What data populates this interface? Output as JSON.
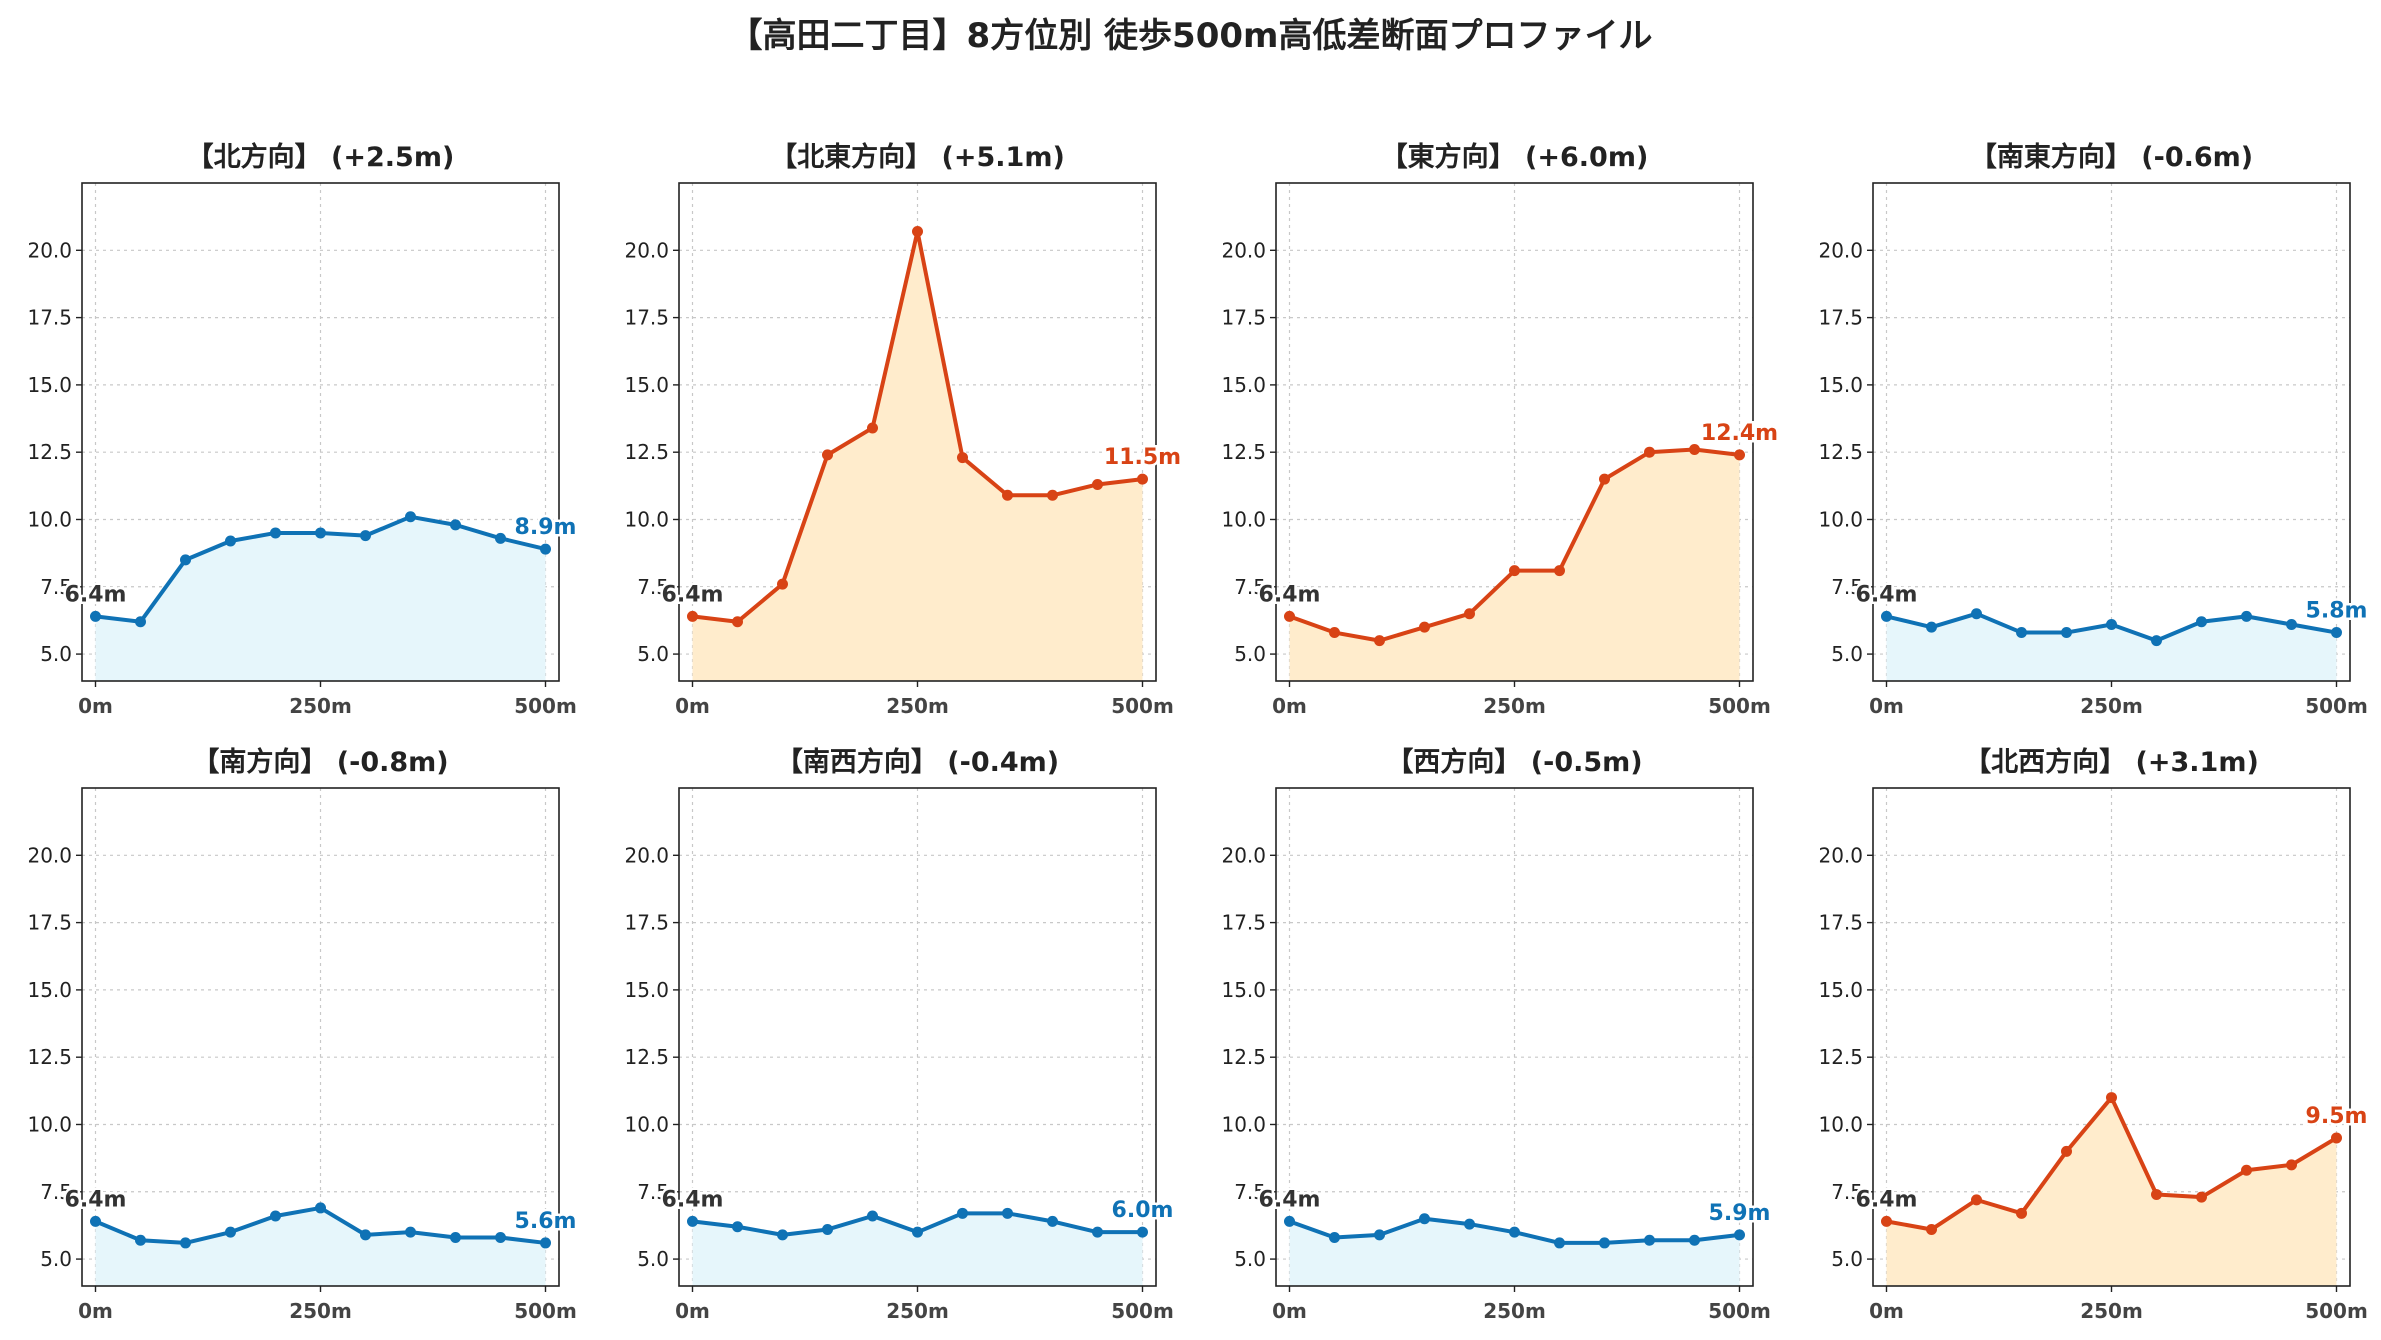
{
  "title": "【高田二丁目】8方位別 徒歩500m高低差断面プロファイル",
  "colors": {
    "up_line": "#d84315",
    "up_fill": "#ffeccc",
    "flat_line": "#0f72b5",
    "flat_fill": "#e6f6fb",
    "start_label": "#333333",
    "grid": "#c8c8c8"
  },
  "chart_data": [
    {
      "type": "area",
      "title": "【北方向】 (+2.5m)",
      "trend": "flat",
      "x": [
        0,
        50,
        100,
        150,
        200,
        250,
        300,
        350,
        400,
        450,
        500
      ],
      "values": [
        6.4,
        6.2,
        8.5,
        9.2,
        9.5,
        9.5,
        9.4,
        10.1,
        9.8,
        9.3,
        8.9
      ],
      "start_label": "6.4m",
      "end_label": "8.9m"
    },
    {
      "type": "area",
      "title": "【北東方向】 (+5.1m)",
      "trend": "up",
      "x": [
        0,
        50,
        100,
        150,
        200,
        250,
        300,
        350,
        400,
        450,
        500
      ],
      "values": [
        6.4,
        6.2,
        7.6,
        12.4,
        13.4,
        20.7,
        12.3,
        10.9,
        10.9,
        11.3,
        11.5
      ],
      "start_label": "6.4m",
      "end_label": "11.5m"
    },
    {
      "type": "area",
      "title": "【東方向】 (+6.0m)",
      "trend": "up",
      "x": [
        0,
        50,
        100,
        150,
        200,
        250,
        300,
        350,
        400,
        450,
        500
      ],
      "values": [
        6.4,
        5.8,
        5.5,
        6.0,
        6.5,
        8.1,
        8.1,
        11.5,
        12.5,
        12.6,
        12.4
      ],
      "start_label": "6.4m",
      "end_label": "12.4m"
    },
    {
      "type": "area",
      "title": "【南東方向】 (-0.6m)",
      "trend": "flat",
      "x": [
        0,
        50,
        100,
        150,
        200,
        250,
        300,
        350,
        400,
        450,
        500
      ],
      "values": [
        6.4,
        6.0,
        6.5,
        5.8,
        5.8,
        6.1,
        5.5,
        6.2,
        6.4,
        6.1,
        5.8
      ],
      "start_label": "6.4m",
      "end_label": "5.8m"
    },
    {
      "type": "area",
      "title": "【南方向】 (-0.8m)",
      "trend": "flat",
      "x": [
        0,
        50,
        100,
        150,
        200,
        250,
        300,
        350,
        400,
        450,
        500
      ],
      "values": [
        6.4,
        5.7,
        5.6,
        6.0,
        6.6,
        6.9,
        5.9,
        6.0,
        5.8,
        5.8,
        5.6
      ],
      "start_label": "6.4m",
      "end_label": "5.6m"
    },
    {
      "type": "area",
      "title": "【南西方向】 (-0.4m)",
      "trend": "flat",
      "x": [
        0,
        50,
        100,
        150,
        200,
        250,
        300,
        350,
        400,
        450,
        500
      ],
      "values": [
        6.4,
        6.2,
        5.9,
        6.1,
        6.6,
        6.0,
        6.7,
        6.7,
        6.4,
        6.0,
        6.0
      ],
      "start_label": "6.4m",
      "end_label": "6.0m"
    },
    {
      "type": "area",
      "title": "【西方向】 (-0.5m)",
      "trend": "flat",
      "x": [
        0,
        50,
        100,
        150,
        200,
        250,
        300,
        350,
        400,
        450,
        500
      ],
      "values": [
        6.4,
        5.8,
        5.9,
        6.5,
        6.3,
        6.0,
        5.6,
        5.6,
        5.7,
        5.7,
        5.9
      ],
      "start_label": "6.4m",
      "end_label": "5.9m"
    },
    {
      "type": "area",
      "title": "【北西方向】 (+3.1m)",
      "trend": "up",
      "x": [
        0,
        50,
        100,
        150,
        200,
        250,
        300,
        350,
        400,
        450,
        500
      ],
      "values": [
        6.4,
        6.1,
        7.2,
        6.7,
        9.0,
        11.0,
        7.4,
        7.3,
        8.3,
        8.5,
        9.5
      ],
      "start_label": "6.4m",
      "end_label": "9.5m"
    }
  ],
  "axes": {
    "ylim": [
      4.0,
      22.5
    ],
    "xlim": [
      -15,
      515
    ],
    "y_ticks": [
      5.0,
      7.5,
      10.0,
      12.5,
      15.0,
      17.5,
      20.0
    ],
    "y_tick_labels": [
      "5.0",
      "7.5",
      "10.0",
      "12.5",
      "15.0",
      "17.5",
      "20.0"
    ],
    "x_ticks": [
      0,
      250,
      500
    ],
    "x_tick_labels": [
      "0m",
      "250m",
      "500m"
    ],
    "grid": true
  }
}
